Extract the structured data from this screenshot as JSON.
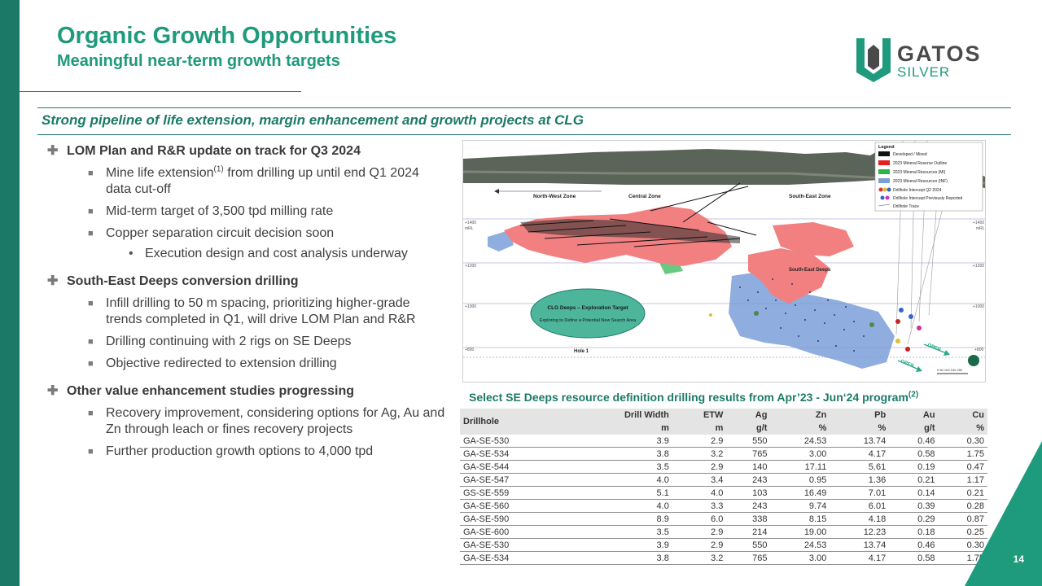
{
  "header": {
    "title": "Organic Growth Opportunities",
    "subtitle": "Meaningful near-term growth targets"
  },
  "logo": {
    "word": "GATOS",
    "sub": "SILVER"
  },
  "banner": "Strong pipeline of life extension, margin enhancement and growth projects at CLG",
  "bullets": {
    "b1": "LOM Plan and R&R update on track for Q3 2024",
    "b1_1a": "Mine life extension",
    "b1_1sup": "(1)",
    "b1_1b": " from drilling up until end Q1 2024 data cut-off",
    "b1_2": "Mid-term target of 3,500 tpd milling rate",
    "b1_3": "Copper separation circuit decision soon",
    "b1_3_1": "Execution design and cost analysis underway",
    "b2": "South-East Deeps conversion drilling",
    "b2_1": "Infill drilling to 50 m spacing, prioritizing higher-grade trends completed in Q1, will drive LOM Plan and R&R",
    "b2_2": "Drilling continuing with 2 rigs on SE Deeps",
    "b2_3": "Objective redirected to extension drilling",
    "b3": "Other value enhancement studies progressing",
    "b3_1": "Recovery improvement, considering options for Ag, Au and Zn through leach or fines recovery projects",
    "b3_2": "Further production growth options to 4,000 tpd"
  },
  "figure": {
    "zones": {
      "nw": "North-West Zone",
      "central": "Central Zone",
      "se": "South-East Zone",
      "sed": "South-East Deeps"
    },
    "target_title": "CLG Deeps – Exploration Target",
    "target_sub": "Exploring to Define a Potential New Search Area",
    "hole": "Hole 1",
    "open1": "OPEN",
    "open2": "OPEN",
    "elev": {
      "e1400": "+1400",
      "e1200": "+1200",
      "e1000": "+1000",
      "e800": "+800",
      "mrl": "mRL"
    },
    "scale": "0   50  100  150 250",
    "legend": {
      "title": "Legend",
      "items": [
        {
          "label": "Developed / Mined",
          "color": "#111111"
        },
        {
          "label": "2023 Mineral Reserve Outline",
          "color": "#e52020"
        },
        {
          "label": "2023 Mineral Resources (MI)",
          "color": "#2db34a"
        },
        {
          "label": "2023 Mineral Resources (INF)",
          "color": "#7b9fd8"
        },
        {
          "label": "Drillhole Intercept Q2 2024",
          "color": "#d33"
        },
        {
          "label": "Drillhole Intercept Previously Reported",
          "color": "#36c"
        },
        {
          "label": "Drillhole Trace",
          "color": "#888888"
        }
      ]
    }
  },
  "table": {
    "title": "Select SE Deeps resource definition drilling results from Apr’23 - Jun‘24 program",
    "title_sup": "(2)",
    "head1": [
      "Drillhole",
      "Drill Width",
      "ETW",
      "Ag",
      "Zn",
      "Pb",
      "Au",
      "Cu"
    ],
    "head2": [
      "m",
      "m",
      "g/t",
      "%",
      "%",
      "g/t",
      "%"
    ],
    "rows": [
      [
        "GA-SE-530",
        "3.9",
        "2.9",
        "550",
        "24.53",
        "13.74",
        "0.46",
        "0.30"
      ],
      [
        "GA-SE-534",
        "3.8",
        "3.2",
        "765",
        "3.00",
        "4.17",
        "0.58",
        "1.75"
      ],
      [
        "GA-SE-544",
        "3.5",
        "2.9",
        "140",
        "17.11",
        "5.61",
        "0.19",
        "0.47"
      ],
      [
        "GA-SE-547",
        "4.0",
        "3.4",
        "243",
        "0.95",
        "1.36",
        "0.21",
        "1.17"
      ],
      [
        "GS-SE-559",
        "5.1",
        "4.0",
        "103",
        "16.49",
        "7.01",
        "0.14",
        "0.21"
      ],
      [
        "GA-SE-560",
        "4.0",
        "3.3",
        "243",
        "9.74",
        "6.01",
        "0.39",
        "0.28"
      ],
      [
        "GA-SE-590",
        "8.9",
        "6.0",
        "338",
        "8.15",
        "4.18",
        "0.29",
        "0.87"
      ],
      [
        "GA-SE-600",
        "3.5",
        "2.9",
        "214",
        "19.00",
        "12.23",
        "0.18",
        "0.25"
      ],
      [
        "GA-SE-530",
        "3.9",
        "2.9",
        "550",
        "24.53",
        "13.74",
        "0.46",
        "0.30"
      ],
      [
        "GA-SE-534",
        "3.8",
        "3.2",
        "765",
        "3.00",
        "4.17",
        "0.58",
        "1.75"
      ]
    ]
  },
  "page_number": "14",
  "colors": {
    "accent": "#1e9a7c",
    "dark_accent": "#1b7a67"
  }
}
